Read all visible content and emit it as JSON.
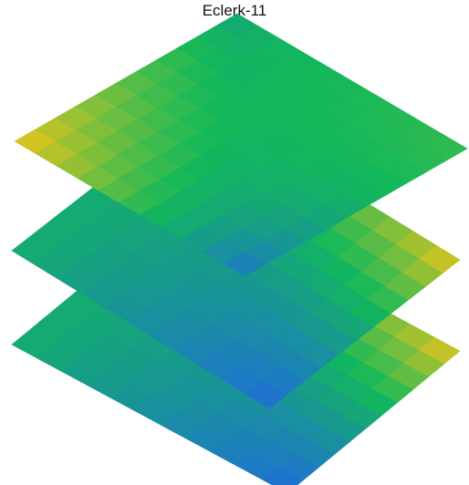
{
  "title": "Eclerk-11",
  "matrix_size": 11,
  "layer_count": 3,
  "colors": {
    "low": "#1f6fd6",
    "mid": "#12b85a",
    "high": "#f0c61a",
    "background": "#ffffff"
  },
  "layers": [
    {
      "name": "bottom",
      "hot_corner": "right"
    },
    {
      "name": "middle",
      "hot_corner": "right"
    },
    {
      "name": "top",
      "hot_corner": "left",
      "cold_corner": "bottom"
    }
  ]
}
